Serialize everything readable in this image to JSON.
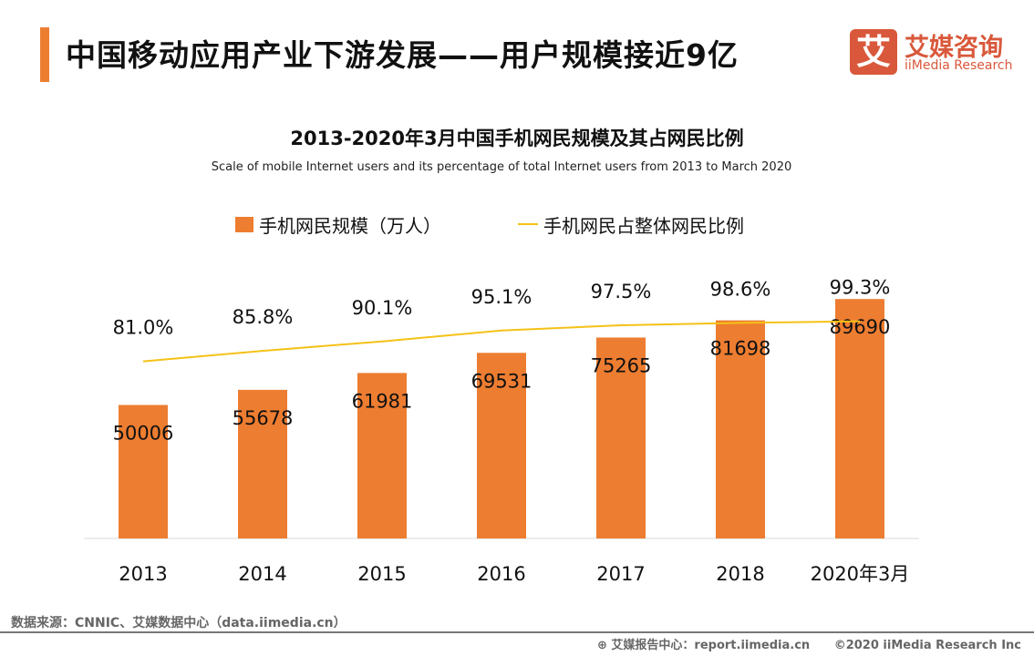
{
  "header": {
    "title": "中国移动应用产业下游发展——用户规模接近9亿"
  },
  "logo": {
    "glyph": "艾",
    "cn": "艾媒咨询",
    "en": "iiMedia Research"
  },
  "chart_data": {
    "type": "bar+line",
    "title": "2013-2020年3月中国手机网民规模及其占网民比例",
    "subtitle": "Scale of mobile Internet users and its percentage of total Internet users from 2013 to March 2020",
    "categories": [
      "2013",
      "2014",
      "2015",
      "2016",
      "2017",
      "2018",
      "2020年3月"
    ],
    "series": [
      {
        "name": "手机网民规模（万人）",
        "type": "bar",
        "color": "#ed7d31",
        "values": [
          50006,
          55678,
          61981,
          69531,
          75265,
          81698,
          89690
        ],
        "labels": [
          "50006",
          "55678",
          "61981",
          "69531",
          "75265",
          "81698",
          "89690"
        ]
      },
      {
        "name": "手机网民占整体网民比例",
        "type": "line",
        "color": "#f5c117",
        "values": [
          81.0,
          85.8,
          90.1,
          95.1,
          97.5,
          98.6,
          99.3
        ],
        "labels": [
          "81.0%",
          "85.8%",
          "90.1%",
          "95.1%",
          "97.5%",
          "98.6%",
          "99.3%"
        ]
      }
    ],
    "ylim": [
      0,
      100000
    ],
    "y2lim": [
      0,
      100
    ],
    "grid": false,
    "legend": "top-center"
  },
  "footer": {
    "source": "数据来源：CNNIC、艾媒数据中心（data.iimedia.cn）",
    "report": "艾媒报告中心：report.iimedia.cn",
    "copyright": "©2020  iiMedia Research  Inc"
  }
}
